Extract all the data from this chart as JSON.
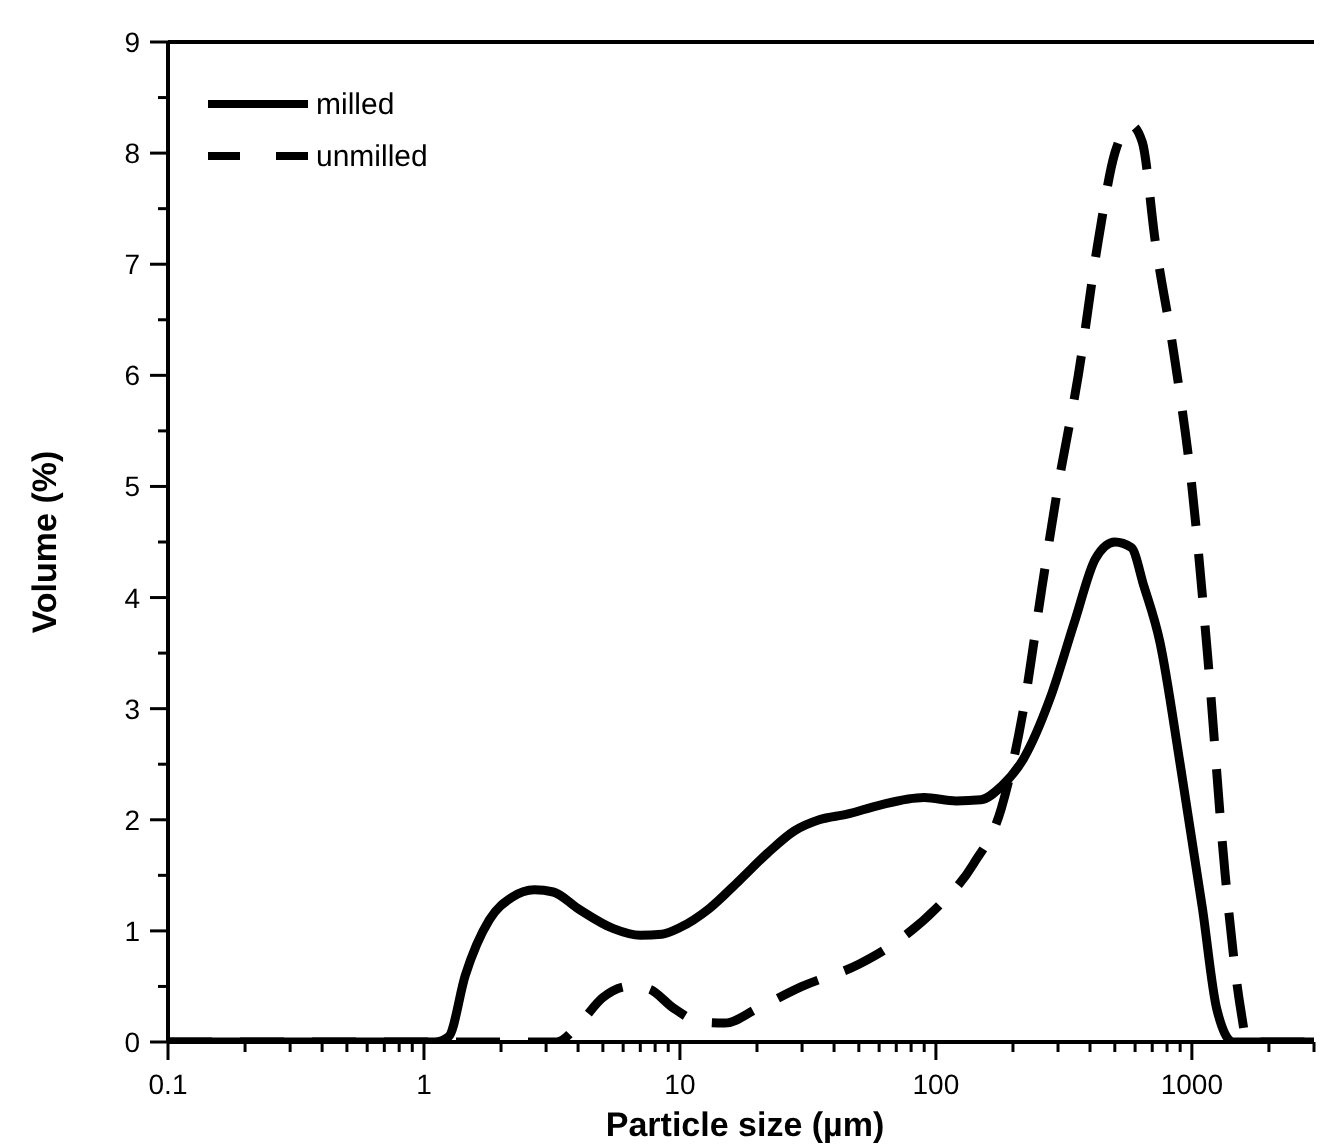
{
  "chart_data": {
    "type": "line",
    "xlabel": "Particle size (µm)",
    "ylabel": "Volume (%)",
    "log": "x",
    "xlim": [
      0.1,
      3000
    ],
    "ylim": [
      0,
      9
    ],
    "xticks": [
      0.1,
      {
        "value": 0.2,
        "label": null
      },
      {
        "value": 0.3,
        "label": null
      },
      {
        "value": 0.4,
        "label": null
      },
      {
        "value": 0.5,
        "label": null
      },
      {
        "value": 0.6,
        "label": null
      },
      {
        "value": 0.7,
        "label": null
      },
      {
        "value": 0.8,
        "label": null
      },
      {
        "value": 0.9,
        "label": null
      },
      1,
      {
        "value": 2,
        "label": null
      },
      {
        "value": 3,
        "label": null
      },
      {
        "value": 4,
        "label": null
      },
      {
        "value": 5,
        "label": null
      },
      {
        "value": 6,
        "label": null
      },
      {
        "value": 7,
        "label": null
      },
      {
        "value": 8,
        "label": null
      },
      {
        "value": 9,
        "label": null
      },
      10,
      {
        "value": 20,
        "label": null
      },
      {
        "value": 30,
        "label": null
      },
      {
        "value": 40,
        "label": null
      },
      {
        "value": 50,
        "label": null
      },
      {
        "value": 60,
        "label": null
      },
      {
        "value": 70,
        "label": null
      },
      {
        "value": 80,
        "label": null
      },
      {
        "value": 90,
        "label": null
      },
      100,
      {
        "value": 200,
        "label": null
      },
      {
        "value": 300,
        "label": null
      },
      {
        "value": 400,
        "label": null
      },
      {
        "value": 500,
        "label": null
      },
      {
        "value": 600,
        "label": null
      },
      {
        "value": 700,
        "label": null
      },
      {
        "value": 800,
        "label": null
      },
      {
        "value": 900,
        "label": null
      },
      1000,
      {
        "value": 2000,
        "label": null
      },
      {
        "value": 3000,
        "label": null
      }
    ],
    "yticks": [
      0,
      {
        "value": 0.5,
        "label": null
      },
      1,
      {
        "value": 1.5,
        "label": null
      },
      2,
      {
        "value": 2.5,
        "label": null
      },
      3,
      {
        "value": 3.5,
        "label": null
      },
      4,
      {
        "value": 4.5,
        "label": null
      },
      5,
      {
        "value": 5.5,
        "label": null
      },
      6,
      {
        "value": 6.5,
        "label": null
      },
      7,
      {
        "value": 7.5,
        "label": null
      },
      8,
      {
        "value": 8.5,
        "label": null
      },
      9
    ],
    "grid": false,
    "legend": "top left",
    "series": [
      {
        "name": "milled",
        "color": "#000000",
        "line_style": "solid",
        "x": [
          0.1,
          1.1,
          1.25,
          1.45,
          1.8,
          2.2,
          2.7,
          3.2,
          4,
          5.5,
          7,
          8.5,
          10,
          13,
          17,
          22,
          28,
          35,
          45,
          60,
          90,
          120,
          150,
          180,
          220,
          280,
          350,
          420,
          500,
          580,
          650,
          750,
          900,
          1100,
          1250,
          1450,
          3000
        ],
        "values": [
          0,
          0,
          0.05,
          0.6,
          1.1,
          1.3,
          1.37,
          1.35,
          1.2,
          1.02,
          0.96,
          0.97,
          1.03,
          1.2,
          1.45,
          1.7,
          1.9,
          2.0,
          2.05,
          2.13,
          2.2,
          2.17,
          2.18,
          2.3,
          2.55,
          3.1,
          3.8,
          4.35,
          4.5,
          4.45,
          4.1,
          3.6,
          2.5,
          1.2,
          0.3,
          0,
          0
        ]
      },
      {
        "name": "unmilled",
        "color": "#000000",
        "line_style": "dashed",
        "x": [
          0.1,
          1.3,
          3.3,
          4,
          5,
          6.3,
          7.5,
          9.5,
          12,
          15,
          20,
          30,
          50,
          70,
          100,
          140,
          180,
          220,
          260,
          300,
          360,
          430,
          500,
          580,
          640,
          720,
          850,
          1000,
          1150,
          1350,
          1550,
          1650,
          3000
        ],
        "values": [
          0,
          0,
          0,
          0.15,
          0.4,
          0.5,
          0.48,
          0.3,
          0.18,
          0.17,
          0.3,
          0.5,
          0.7,
          0.9,
          1.2,
          1.6,
          2.1,
          3.0,
          4.1,
          5.0,
          6.0,
          7.2,
          8.0,
          8.25,
          8.1,
          7.2,
          6.2,
          5.0,
          3.5,
          1.5,
          0.3,
          0,
          0
        ]
      }
    ]
  }
}
